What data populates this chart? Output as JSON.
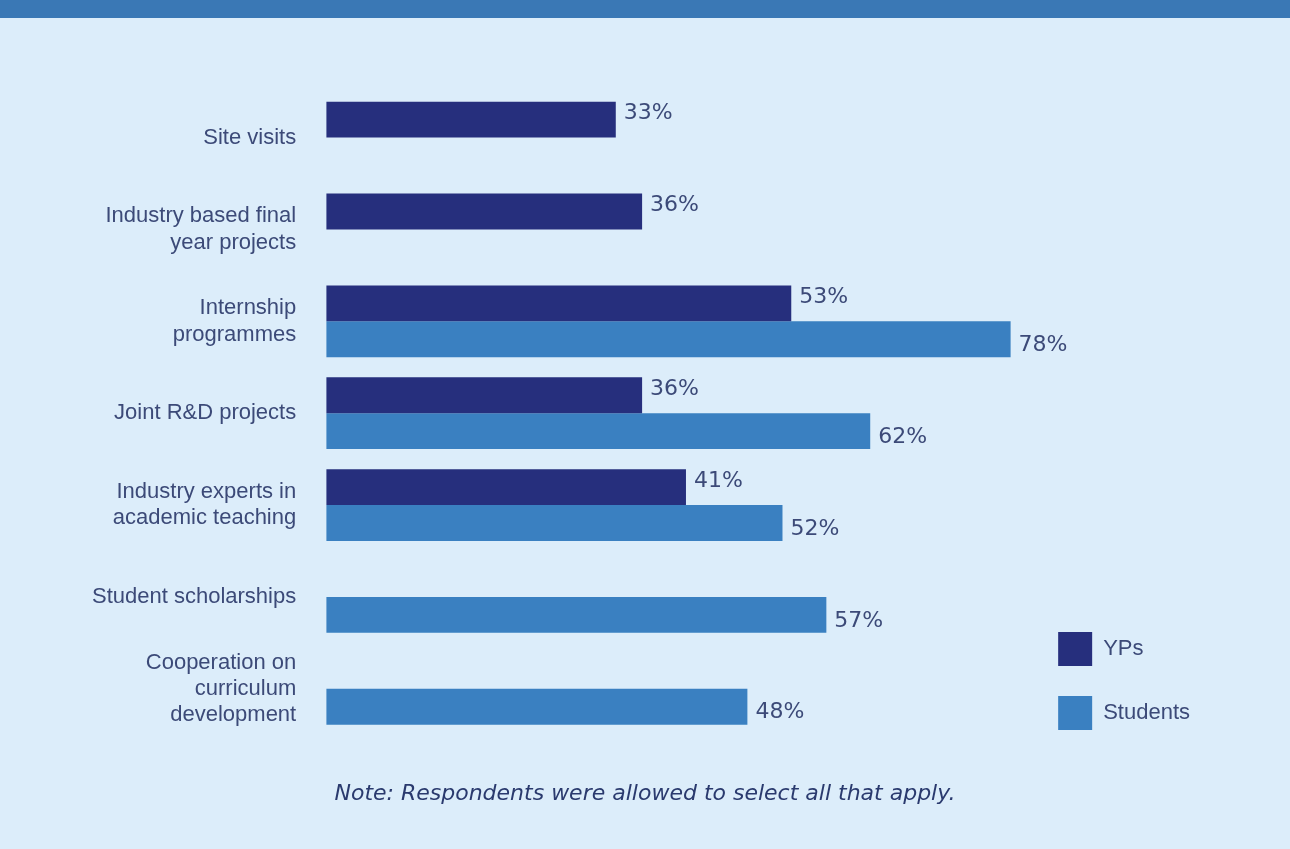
{
  "chart_data": {
    "type": "bar",
    "orientation": "horizontal",
    "categories": [
      "Site visits",
      "Industry based final year projects",
      "Internship programmes",
      "Joint R&D projects",
      "Industry experts in academic teaching",
      "Student scholarships",
      "Cooperation on curriculum development"
    ],
    "series": [
      {
        "name": "YPs",
        "color": "#262f7d",
        "values": [
          33,
          36,
          53,
          36,
          41,
          null,
          null
        ],
        "value_labels": [
          "33%",
          "36%",
          "53%",
          "36%",
          "41%",
          null,
          null
        ]
      },
      {
        "name": "Students",
        "color": "#3a80c1",
        "values": [
          null,
          null,
          78,
          62,
          52,
          57,
          48
        ],
        "value_labels": [
          null,
          null,
          "78%",
          "62%",
          "52%",
          "57%",
          "48%"
        ]
      }
    ],
    "grid": false,
    "legend": "bottom right",
    "tick_labels": "y",
    "annotations": [
      "Note: Respondents were allowed to select all that apply."
    ]
  }
}
